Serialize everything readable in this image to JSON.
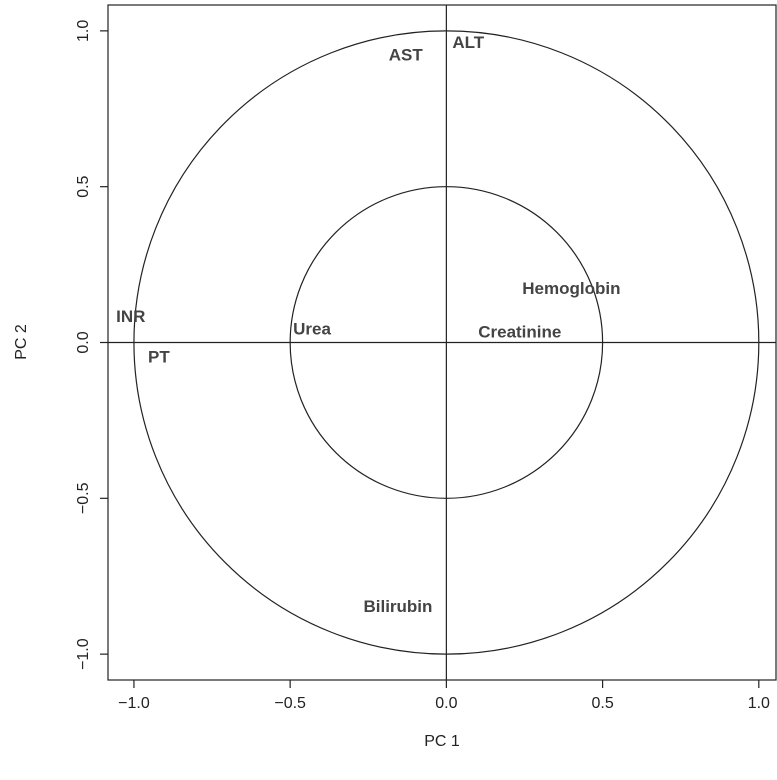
{
  "chart_data": {
    "type": "scatter",
    "xlabel": "PC  1",
    "ylabel": "PC  2",
    "labels": [
      "AST",
      "ALT",
      "Hemoglobin",
      "INR",
      "PT",
      "Urea",
      "Creatinine",
      "Bilirubin"
    ],
    "x": [
      -0.13,
      0.07,
      0.4,
      -1.01,
      -0.92,
      -0.43,
      0.235,
      -0.155
    ],
    "values": [
      0.92,
      0.96,
      0.17,
      0.08,
      -0.05,
      0.04,
      0.03,
      -0.85
    ],
    "color": "#444444",
    "circles": [
      1,
      0.5
    ],
    "ref_lines": [
      0
    ],
    "xlim": [
      -1.083,
      1.055
    ],
    "ylim": [
      -1.083,
      1.083
    ],
    "xticks": [
      {
        "value": -1,
        "label": "−1.0"
      },
      {
        "value": -0.5,
        "label": "−0.5"
      },
      {
        "value": 0,
        "label": "0.0"
      },
      0.5,
      {
        "value": 1,
        "label": "1.0"
      }
    ],
    "yticks": [
      {
        "value": -1,
        "label": "−1.0"
      },
      {
        "value": -0.5,
        "label": "−0.5"
      },
      {
        "value": 0,
        "label": "0.0"
      },
      0.5,
      {
        "value": 1,
        "label": "1.0"
      }
    ]
  }
}
